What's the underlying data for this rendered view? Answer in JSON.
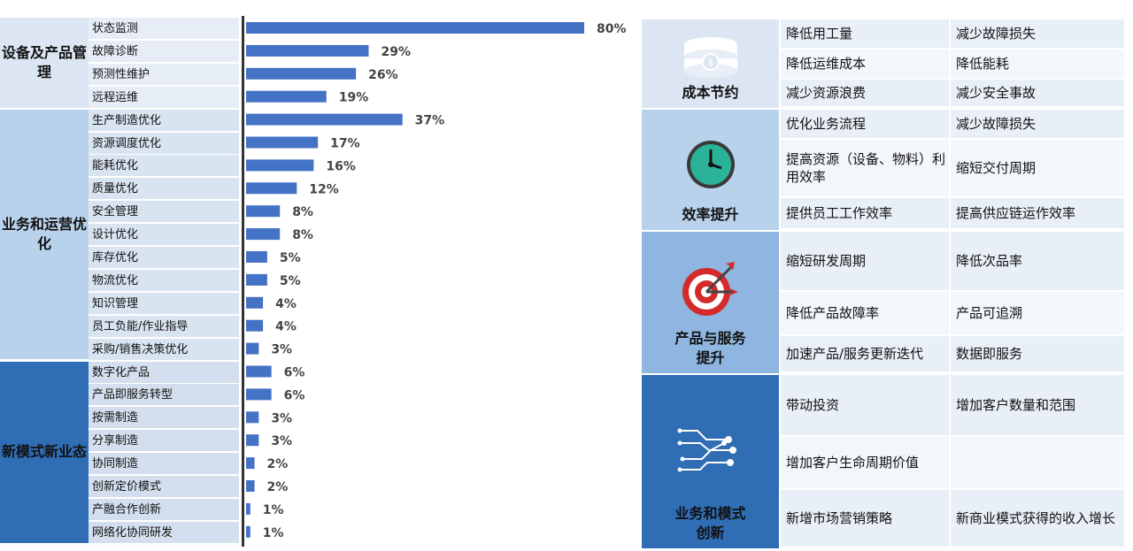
{
  "left_groups": [
    {
      "title": "设备及产品管理",
      "rows": 4
    },
    {
      "title": "业务和运营优化",
      "rows": 11
    },
    {
      "title": "新模式新业态",
      "rows": 8
    }
  ],
  "chart_data": {
    "type": "bar",
    "orientation": "horizontal",
    "categories": [
      "状态监测",
      "故障诊断",
      "预测性维护",
      "远程运维",
      "生产制造优化",
      "资源调度优化",
      "能耗优化",
      "质量优化",
      "安全管理",
      "设计优化",
      "库存优化",
      "物流优化",
      "知识管理",
      "员工负能/作业指导",
      "采购/销售决策优化",
      "数字化产品",
      "产品即服务转型",
      "按需制造",
      "分享制造",
      "协同制造",
      "创新定价模式",
      "产融合作创新",
      "网络化协同研发"
    ],
    "values": [
      80,
      29,
      26,
      19,
      37,
      17,
      16,
      12,
      8,
      8,
      5,
      5,
      4,
      4,
      3,
      6,
      6,
      3,
      3,
      2,
      2,
      1,
      1
    ],
    "value_labels": [
      "80%",
      "29%",
      "26%",
      "19%",
      "37%",
      "17%",
      "16%",
      "12%",
      "8%",
      "8%",
      "5%",
      "5%",
      "4%",
      "4%",
      "3%",
      "6%",
      "6%",
      "3%",
      "3%",
      "2%",
      "2%",
      "1%",
      "1%"
    ],
    "unit": "%",
    "xlim": [
      0,
      80
    ],
    "bar_color": "#4472c4",
    "title": "",
    "xlabel": "",
    "ylabel": ""
  },
  "benefits": [
    {
      "title": "成本节约",
      "icon": "database-icon",
      "color": "#dbe6f2",
      "rows": [
        [
          "降低用工量",
          "减少故障损失"
        ],
        [
          "降低运维成本",
          "降低能耗"
        ],
        [
          "减少资源浪费",
          "减少安全事故"
        ]
      ]
    },
    {
      "title": "效率提升",
      "icon": "clock-icon",
      "color": "#b9d2ec",
      "rows": [
        [
          "优化业务流程",
          "减少故障损失"
        ],
        [
          "提高资源（设备、物料）利用效率",
          "缩短交付周期"
        ],
        [
          "提供员工工作效率",
          "提高供应链运作效率"
        ]
      ]
    },
    {
      "title": "产品与服务提升",
      "icon": "target-icon",
      "color": "#8fb6e0",
      "rows": [
        [
          "缩短研发周期",
          "降低次品率"
        ],
        [
          "降低产品故障率",
          "产品可追溯"
        ],
        [
          "加速产品/服务更新迭代",
          "数据即服务"
        ]
      ]
    },
    {
      "title": "业务和模式创新",
      "icon": "circuit-icon",
      "color": "#2f6db4",
      "rows": [
        [
          "带动投资",
          "增加客户数量和范围"
        ],
        [
          "增加客户生命周期价值",
          ""
        ],
        [
          "新增市场营销策略",
          "新商业模式获得的收入增长"
        ]
      ]
    }
  ]
}
